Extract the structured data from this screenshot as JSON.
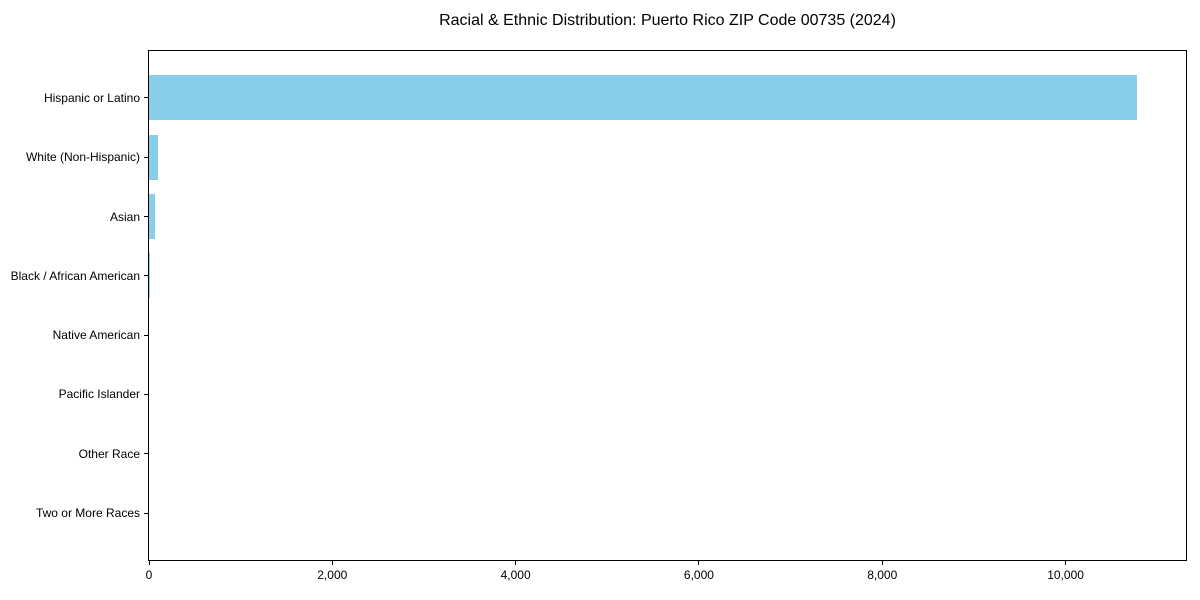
{
  "title": "Racial & Ethnic Distribution: Puerto Rico ZIP Code 00735 (2024)",
  "chart_data": {
    "type": "bar",
    "orientation": "horizontal",
    "title": "Racial & Ethnic Distribution: Puerto Rico ZIP Code 00735 (2024)",
    "categories": [
      "Hispanic or Latino",
      "White (Non-Hispanic)",
      "Asian",
      "Black / African American",
      "Native American",
      "Pacific Islander",
      "Other Race",
      "Two or More Races"
    ],
    "values": [
      10775,
      100,
      65,
      15,
      0,
      0,
      0,
      0
    ],
    "xlabel": "",
    "ylabel": "",
    "xlim": [
      0,
      11314
    ],
    "xticks": [
      0,
      2000,
      4000,
      6000,
      8000,
      10000
    ],
    "xtick_labels": [
      "0",
      "2,000",
      "4,000",
      "6,000",
      "8,000",
      "10,000"
    ],
    "bar_color": "#87CEEB",
    "background_color": "#FFFFFF",
    "frame_color": "#000000",
    "grid": false,
    "legend": null
  }
}
